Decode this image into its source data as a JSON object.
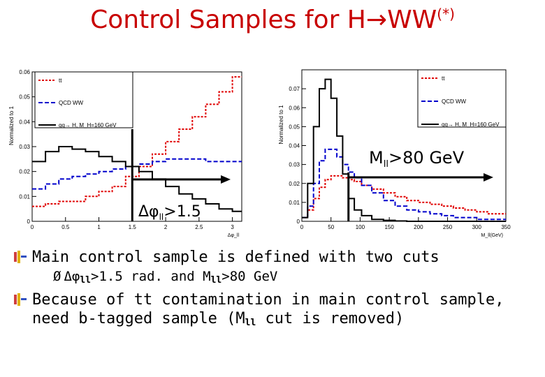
{
  "slide": {
    "title": "Control Samples for H",
    "title_arrow": "→",
    "title_tail": "WW",
    "title_sup": "(*)"
  },
  "bullets": {
    "b1": "Main control sample is defined with two cuts",
    "sub_arrow": "Ø",
    "sub_part1": "Δφ",
    "sub_ll1": "ll",
    "sub_part2": ">1.5 rad. and M",
    "sub_ll2": "ll",
    "sub_part3": ">80 GeV",
    "b2_line1": "Because of tt contamination in main control sample,",
    "b2_line2a": "need b-tagged sample (M",
    "b2_ll": "ll",
    "b2_line2b": " cut is removed)"
  },
  "chart_data": [
    {
      "type": "line",
      "xlabel": "Δφ_ll",
      "ylabel": "Normalized to 1",
      "xlim": [
        0,
        3.14
      ],
      "ylim": [
        0,
        0.06
      ],
      "xticks": [
        "0",
        "0.5",
        "1",
        "1.5",
        "2",
        "2.5",
        "3"
      ],
      "yticks": [
        "0",
        "0.01",
        "0.02",
        "0.03",
        "0.04",
        "0.05",
        "0.06"
      ],
      "legend_position": "top-right",
      "x": [
        0.1,
        0.3,
        0.5,
        0.7,
        0.9,
        1.1,
        1.3,
        1.5,
        1.7,
        1.9,
        2.1,
        2.3,
        2.5,
        2.7,
        2.9,
        3.1
      ],
      "series": [
        {
          "name": "tt",
          "color": "#e00000",
          "dash": "dotted",
          "values": [
            0.006,
            0.007,
            0.008,
            0.008,
            0.01,
            0.012,
            0.014,
            0.018,
            0.022,
            0.027,
            0.032,
            0.037,
            0.042,
            0.047,
            0.052,
            0.058
          ]
        },
        {
          "name": "QCD WW",
          "color": "#0000cc",
          "dash": "dashed",
          "values": [
            0.013,
            0.015,
            0.017,
            0.018,
            0.019,
            0.02,
            0.021,
            0.022,
            0.023,
            0.024,
            0.025,
            0.025,
            0.025,
            0.024,
            0.024,
            0.024
          ]
        },
        {
          "name": "gg→ H, M_H=160 GeV",
          "color": "#000000",
          "dash": "solid",
          "values": [
            0.024,
            0.028,
            0.03,
            0.029,
            0.028,
            0.026,
            0.024,
            0.022,
            0.02,
            0.017,
            0.014,
            0.011,
            0.009,
            0.007,
            0.005,
            0.004
          ]
        }
      ],
      "cut": {
        "x": 1.5,
        "label_main": "Δφ",
        "label_sub": "ll",
        "label_tail": ">1.5"
      }
    },
    {
      "type": "line",
      "xlabel": "M_ll(GeV)",
      "ylabel": "Normalized to 1",
      "xlim": [
        0,
        350
      ],
      "ylim": [
        0,
        0.08
      ],
      "xticks": [
        "0",
        "50",
        "100",
        "150",
        "200",
        "250",
        "300",
        "350"
      ],
      "yticks": [
        "0",
        "0.01",
        "0.02",
        "0.03",
        "0.04",
        "0.05",
        "0.06",
        "0.07"
      ],
      "legend_position": "top-right",
      "x": [
        5,
        15,
        25,
        35,
        45,
        55,
        65,
        75,
        85,
        95,
        110,
        130,
        150,
        170,
        190,
        210,
        230,
        250,
        270,
        290,
        310,
        330,
        345
      ],
      "series": [
        {
          "name": "tt",
          "color": "#e00000",
          "dash": "dotted",
          "values": [
            0.002,
            0.006,
            0.012,
            0.018,
            0.022,
            0.024,
            0.024,
            0.023,
            0.022,
            0.021,
            0.019,
            0.017,
            0.015,
            0.013,
            0.011,
            0.01,
            0.009,
            0.008,
            0.007,
            0.006,
            0.005,
            0.004,
            0.004
          ]
        },
        {
          "name": "QCD WW",
          "color": "#0000cc",
          "dash": "dashed",
          "values": [
            0.002,
            0.008,
            0.02,
            0.032,
            0.038,
            0.038,
            0.034,
            0.03,
            0.026,
            0.023,
            0.019,
            0.015,
            0.011,
            0.008,
            0.006,
            0.005,
            0.004,
            0.003,
            0.002,
            0.002,
            0.001,
            0.001,
            0.001
          ]
        },
        {
          "name": "gg→ H, M_H=160 GeV",
          "color": "#000000",
          "dash": "solid",
          "values": [
            0.002,
            0.02,
            0.05,
            0.07,
            0.075,
            0.065,
            0.045,
            0.025,
            0.012,
            0.006,
            0.003,
            0.001,
            0.0005,
            0.0002,
            0,
            0,
            0,
            0,
            0,
            0,
            0,
            0,
            0
          ]
        }
      ],
      "cut": {
        "x": 80,
        "label_main": "M",
        "label_sub": "ll",
        "label_tail": ">80 GeV"
      }
    }
  ]
}
